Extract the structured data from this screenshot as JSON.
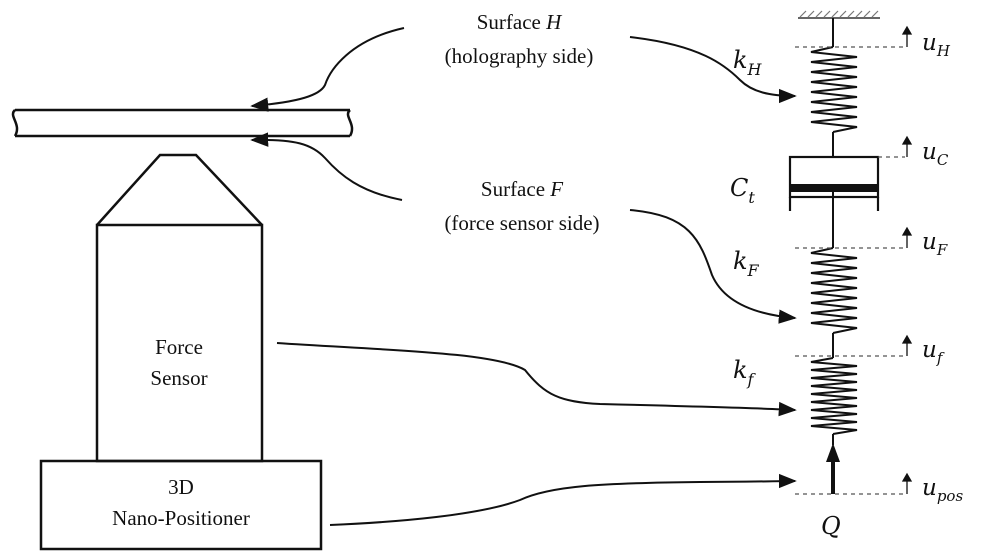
{
  "labels": {
    "surface_h_line1": "Surface ",
    "surface_h_var": "H",
    "surface_h_line2": "(holography side)",
    "surface_f_line1": "Surface ",
    "surface_f_var": "F",
    "surface_f_line2": "(force sensor side)",
    "force_sensor_line1": "Force",
    "force_sensor_line2": "Sensor",
    "positioner_line1": "3D",
    "positioner_line2": "Nano-Positioner"
  },
  "symbols": {
    "k_h": {
      "base": "k",
      "sub": "H"
    },
    "c_t": {
      "base": "C",
      "sub": "t"
    },
    "k_f_upper": {
      "base": "k",
      "sub": "F"
    },
    "k_f_lower": {
      "base": "k",
      "sub": "f"
    },
    "q": {
      "base": "Q",
      "sub": ""
    }
  },
  "displacements": {
    "u_h": {
      "base": "u",
      "sub": "H"
    },
    "u_c": {
      "base": "u",
      "sub": "C"
    },
    "u_f_upper": {
      "base": "u",
      "sub": "F"
    },
    "u_f_lower": {
      "base": "u",
      "sub": "f"
    },
    "u_pos": {
      "base": "u",
      "sub": "pos"
    }
  },
  "colors": {
    "ink": "#111111",
    "dashed": "#555555",
    "ground_hatch": "#666666"
  }
}
